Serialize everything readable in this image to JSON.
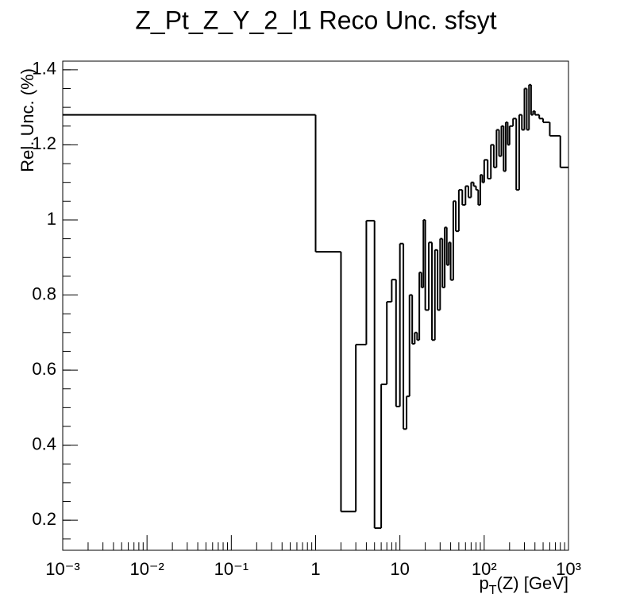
{
  "chart_data": {
    "type": "histogram",
    "title": "Z_Pt_Z_Y_2_l1 Reco Unc. sfsyt",
    "y_label": "Rel. Unc. (%)",
    "x_label": {
      "main": "p",
      "sub": "T",
      "rest": "(Z) [GeV]"
    },
    "x_log": true,
    "color": "#000000",
    "xlim": [
      0.001,
      1000
    ],
    "ylim": [
      0.12,
      1.423
    ],
    "xticks": [
      {
        "value": 0.001,
        "label": "10⁻³"
      },
      {
        "value": 0.01,
        "label": "10⁻²"
      },
      {
        "value": 0.1,
        "label": "10⁻¹"
      },
      1,
      10,
      {
        "value": 100,
        "label": "10²"
      },
      {
        "value": 1000,
        "label": "10³"
      }
    ],
    "yticks": [
      0.2,
      0.4,
      0.6,
      0.8,
      1,
      1.2,
      1.4
    ],
    "bins": [
      0.001,
      1,
      2,
      3,
      4,
      5,
      6,
      7,
      8,
      9,
      10,
      11,
      12,
      13,
      14,
      15,
      16,
      17,
      18,
      19,
      20,
      22,
      24,
      26,
      28,
      30,
      32,
      34,
      36,
      38,
      40,
      43,
      46,
      50,
      55,
      60,
      65,
      70,
      75,
      80,
      85,
      90,
      95,
      100,
      110,
      120,
      130,
      140,
      150,
      160,
      170,
      180,
      190,
      200,
      220,
      240,
      260,
      280,
      300,
      320,
      340,
      360,
      380,
      400,
      450,
      500,
      600,
      800,
      1000
    ],
    "values": [
      1.28,
      0.915,
      0.223,
      0.668,
      0.998,
      0.179,
      0.562,
      0.782,
      0.841,
      0.503,
      0.937,
      0.443,
      0.53,
      0.8,
      0.67,
      0.7,
      0.68,
      0.86,
      0.82,
      1.0,
      0.76,
      0.94,
      0.68,
      0.92,
      0.76,
      0.95,
      0.82,
      0.98,
      0.88,
      0.94,
      0.84,
      1.05,
      0.97,
      1.08,
      1.04,
      1.09,
      1.06,
      1.1,
      1.09,
      1.08,
      1.04,
      1.12,
      1.1,
      1.16,
      1.11,
      1.2,
      1.14,
      1.24,
      1.17,
      1.25,
      1.13,
      1.26,
      1.2,
      1.25,
      1.27,
      1.08,
      1.28,
      1.24,
      1.35,
      1.24,
      1.36,
      1.28,
      1.29,
      1.28,
      1.27,
      1.26,
      1.224,
      1.14
    ]
  }
}
